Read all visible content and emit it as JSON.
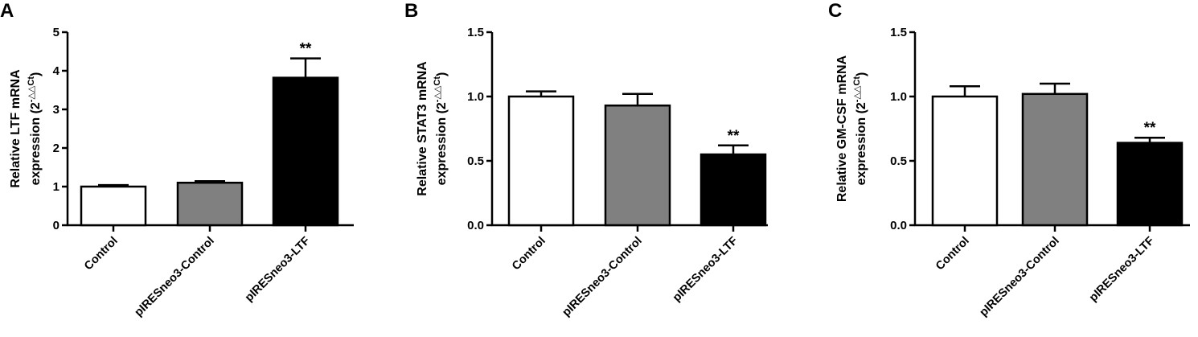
{
  "chart_data": [
    {
      "panel": "A",
      "type": "bar",
      "ylabel_line1": "Relative LTF mRNA",
      "ylabel_line2": "expression (2",
      "ylabel_sup": "-△△Ct",
      "ylabel_close": ")",
      "categories": [
        "Control",
        "pIRESneo3-Control",
        "pIRESneo3-LTF"
      ],
      "values": [
        1.0,
        1.1,
        3.82
      ],
      "errors": [
        0.04,
        0.04,
        0.5
      ],
      "bar_colors": [
        "#ffffff",
        "#808080",
        "#000000"
      ],
      "significance": [
        "",
        "",
        "**"
      ],
      "ylim": [
        0,
        5
      ],
      "yticks": [
        0,
        1,
        2,
        3,
        4,
        5
      ],
      "ytick_labels": [
        "0",
        "1",
        "2",
        "3",
        "4",
        "5"
      ]
    },
    {
      "panel": "B",
      "type": "bar",
      "ylabel_line1": "Relative STAT3 mRNA",
      "ylabel_line2": "expression (2",
      "ylabel_sup": "-△△Ct",
      "ylabel_close": ")",
      "categories": [
        "Control",
        "pIRESneo3-Control",
        "pIRESneo3-LTF"
      ],
      "values": [
        1.0,
        0.93,
        0.55
      ],
      "errors": [
        0.04,
        0.09,
        0.07
      ],
      "bar_colors": [
        "#ffffff",
        "#808080",
        "#000000"
      ],
      "significance": [
        "",
        "",
        "**"
      ],
      "ylim": [
        0,
        1.5
      ],
      "yticks": [
        0,
        0.5,
        1.0,
        1.5
      ],
      "ytick_labels": [
        "0.0",
        "0.5",
        "1.0",
        "1.5"
      ]
    },
    {
      "panel": "C",
      "type": "bar",
      "ylabel_line1": "Relative GM-CSF mRNA",
      "ylabel_line2": "expression (2",
      "ylabel_sup": "-△△Ct",
      "ylabel_close": ")",
      "categories": [
        "Control",
        "pIRESneo3-Control",
        "pIRESneo3-LTF"
      ],
      "values": [
        1.0,
        1.02,
        0.64
      ],
      "errors": [
        0.08,
        0.08,
        0.04
      ],
      "bar_colors": [
        "#ffffff",
        "#808080",
        "#000000"
      ],
      "significance": [
        "",
        "",
        "**"
      ],
      "ylim": [
        0,
        1.5
      ],
      "yticks": [
        0,
        0.5,
        1.0,
        1.5
      ],
      "ytick_labels": [
        "0.0",
        "0.5",
        "1.0",
        "1.5"
      ]
    }
  ]
}
